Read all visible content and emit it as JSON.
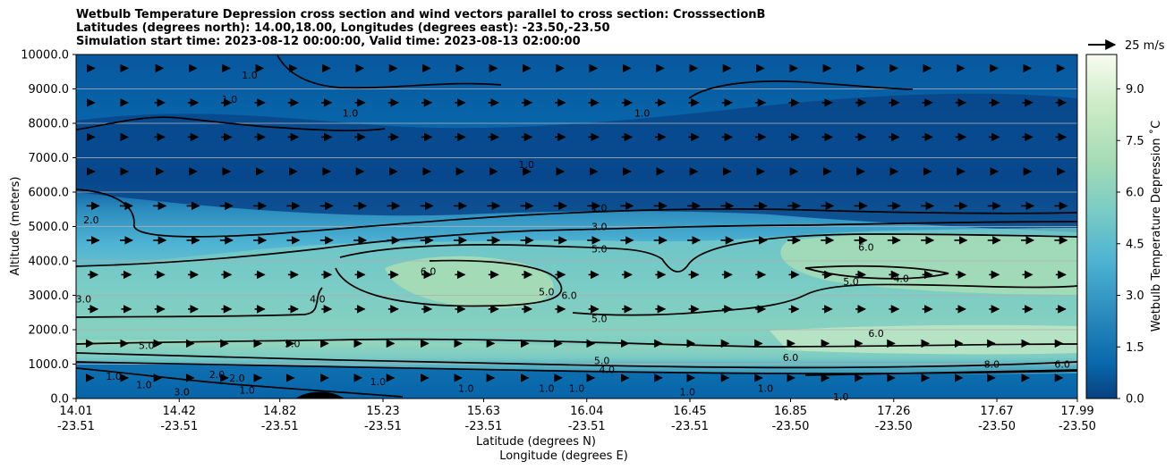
{
  "chart_data": {
    "type": "heatmap",
    "title_lines": [
      "Wetbulb Temperature Depression cross section and wind vectors parallel to cross section: CrosssectionB",
      "Latitudes (degrees north): 14.00,18.00, Longitudes (degrees east): -23.50,-23.50",
      "Simulation start time: 2023-08-12 00:00:00, Valid time: 2023-08-13 02:00:00"
    ],
    "xlabel_lat": "Latitude (degrees N)",
    "xlabel_lon": "Longitude (degrees E)",
    "ylabel": "Altitude (meters)",
    "ylim": [
      0,
      10000
    ],
    "y_ticks": [
      "0.0",
      "1000.0",
      "2000.0",
      "3000.0",
      "4000.0",
      "5000.0",
      "6000.0",
      "7000.0",
      "8000.0",
      "9000.0",
      "10000.0"
    ],
    "x_ticks_lat": [
      "14.01",
      "14.42",
      "14.82",
      "15.23",
      "15.63",
      "16.04",
      "16.45",
      "16.85",
      "17.26",
      "17.67",
      "17.99"
    ],
    "x_ticks_lon": [
      "-23.51",
      "-23.51",
      "-23.51",
      "-23.51",
      "-23.51",
      "-23.51",
      "-23.51",
      "-23.50",
      "-23.50",
      "-23.50",
      "-23.50"
    ],
    "colorbar_label": "Wetbulb Temperature Depression ˚C",
    "colorbar_ticks": [
      "0.0",
      "1.5",
      "3.0",
      "4.5",
      "6.0",
      "7.5",
      "9.0"
    ],
    "colorbar_range": [
      0,
      10
    ],
    "quiver_key": "25 m/s",
    "contour_levels": [
      "1.0",
      "2.0",
      "3.0",
      "4.0",
      "5.0",
      "6.0",
      "8.0"
    ],
    "contour_labels": [
      {
        "text": "1.0",
        "lat": 14.7,
        "alt": 9400
      },
      {
        "text": "1.0",
        "lat": 14.62,
        "alt": 8700
      },
      {
        "text": "1.0",
        "lat": 15.1,
        "alt": 8300
      },
      {
        "text": "1.0",
        "lat": 16.26,
        "alt": 8300
      },
      {
        "text": "1.0",
        "lat": 15.8,
        "alt": 6800
      },
      {
        "text": "1.0",
        "lat": 16.09,
        "alt": 5550
      },
      {
        "text": "3.0",
        "lat": 16.09,
        "alt": 5000
      },
      {
        "text": "5.0",
        "lat": 16.09,
        "alt": 4350
      },
      {
        "text": "5.0",
        "lat": 16.09,
        "alt": 2330
      },
      {
        "text": "6.0",
        "lat": 15.41,
        "alt": 3700
      },
      {
        "text": "5.0",
        "lat": 15.88,
        "alt": 3100
      },
      {
        "text": "6.0",
        "lat": 15.97,
        "alt": 3000
      },
      {
        "text": "4.0",
        "lat": 14.97,
        "alt": 2900
      },
      {
        "text": "5.0",
        "lat": 14.87,
        "alt": 1600
      },
      {
        "text": "5.0",
        "lat": 14.29,
        "alt": 1550
      },
      {
        "text": "2.0",
        "lat": 14.07,
        "alt": 5200
      },
      {
        "text": "3.0",
        "lat": 14.04,
        "alt": 2900
      },
      {
        "text": "6.0",
        "lat": 17.15,
        "alt": 4400
      },
      {
        "text": "5.0",
        "lat": 17.09,
        "alt": 3400
      },
      {
        "text": "4.0",
        "lat": 17.29,
        "alt": 3500
      },
      {
        "text": "6.0",
        "lat": 17.19,
        "alt": 1900
      },
      {
        "text": "6.0",
        "lat": 16.85,
        "alt": 1200
      },
      {
        "text": "8.0",
        "lat": 17.65,
        "alt": 1000
      },
      {
        "text": "6.0",
        "lat": 17.93,
        "alt": 1000
      },
      {
        "text": "5.0",
        "lat": 16.1,
        "alt": 1100
      },
      {
        "text": "4.0",
        "lat": 16.12,
        "alt": 850
      },
      {
        "text": "1.0",
        "lat": 14.16,
        "alt": 650
      },
      {
        "text": "1.0",
        "lat": 14.28,
        "alt": 400
      },
      {
        "text": "2.0",
        "lat": 14.57,
        "alt": 700
      },
      {
        "text": "2.0",
        "lat": 14.65,
        "alt": 600
      },
      {
        "text": "1.0",
        "lat": 14.69,
        "alt": 250
      },
      {
        "text": "3.0",
        "lat": 14.43,
        "alt": 200
      },
      {
        "text": "1.0",
        "lat": 15.21,
        "alt": 500
      },
      {
        "text": "1.0",
        "lat": 15.56,
        "alt": 300
      },
      {
        "text": "1.0",
        "lat": 15.88,
        "alt": 300
      },
      {
        "text": "1.0",
        "lat": 16.0,
        "alt": 300
      },
      {
        "text": "1.0",
        "lat": 16.44,
        "alt": 200
      },
      {
        "text": "1.0",
        "lat": 16.75,
        "alt": 300
      },
      {
        "text": "1.0",
        "lat": 17.05,
        "alt": 50
      }
    ]
  }
}
